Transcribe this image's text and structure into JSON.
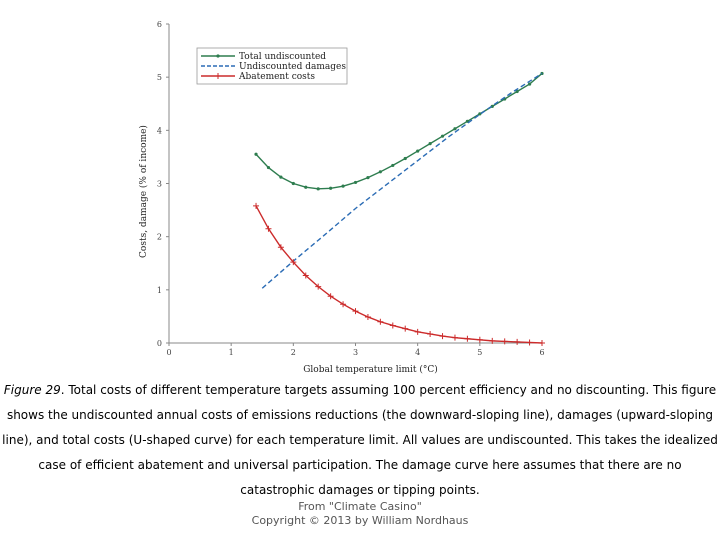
{
  "chart_data": {
    "type": "line",
    "xlabel": "Global temperature limit (°C)",
    "ylabel": "Costs, damage (% of income)",
    "xlim": [
      0,
      6
    ],
    "ylim": [
      0,
      6
    ],
    "xticks": [
      "0",
      "1",
      "2",
      "3",
      "4",
      "5",
      "6"
    ],
    "yticks": [
      "0",
      "1",
      "2",
      "3",
      "4",
      "5",
      "6"
    ],
    "grid": false,
    "legend_position": "top-left",
    "series": [
      {
        "name": "Total undiscounted",
        "color": "#2e7d4f",
        "style": "solid-markers",
        "x": [
          1.4,
          1.6,
          1.8,
          2.0,
          2.2,
          2.4,
          2.6,
          2.8,
          3.0,
          3.2,
          3.4,
          3.6,
          3.8,
          4.0,
          4.2,
          4.4,
          4.6,
          4.8,
          5.0,
          5.2,
          5.4,
          5.6,
          5.8,
          6.0
        ],
        "y": [
          3.55,
          3.3,
          3.12,
          3.0,
          2.93,
          2.9,
          2.91,
          2.95,
          3.02,
          3.11,
          3.22,
          3.34,
          3.47,
          3.61,
          3.75,
          3.89,
          4.03,
          4.17,
          4.31,
          4.45,
          4.59,
          4.73,
          4.87,
          5.07
        ]
      },
      {
        "name": "Undiscounted damages",
        "color": "#2b6cb5",
        "style": "dashed",
        "x": [
          1.5,
          2.0,
          2.5,
          3.0,
          3.5,
          4.0,
          4.5,
          5.0,
          5.5,
          6.0
        ],
        "y": [
          1.03,
          1.54,
          2.03,
          2.53,
          2.98,
          3.43,
          3.88,
          4.3,
          4.7,
          5.07
        ]
      },
      {
        "name": "Abatement costs",
        "color": "#cc2b2b",
        "style": "solid-plus",
        "x": [
          1.4,
          1.6,
          1.8,
          2.0,
          2.2,
          2.4,
          2.6,
          2.8,
          3.0,
          3.2,
          3.4,
          3.6,
          3.8,
          4.0,
          4.2,
          4.4,
          4.6,
          4.8,
          5.0,
          5.2,
          5.4,
          5.6,
          5.8,
          6.0
        ],
        "y": [
          2.58,
          2.15,
          1.8,
          1.52,
          1.27,
          1.06,
          0.88,
          0.73,
          0.6,
          0.49,
          0.4,
          0.33,
          0.27,
          0.21,
          0.17,
          0.13,
          0.1,
          0.08,
          0.06,
          0.04,
          0.03,
          0.02,
          0.01,
          0.0
        ]
      }
    ]
  },
  "caption": {
    "figure_label": "Figure 29",
    "text": ". Total costs of different temperature targets assuming 100 percent efficiency and no discounting. This figure shows the undiscounted annual costs of emissions reductions (the downward-sloping line), damages (upward-sloping line), and total costs (U-shaped curve) for each temperature limit. All values are undiscounted. This takes the idealized case of efficient abatement and universal participation. The damage curve here assumes that there are no catastrophic damages or tipping points."
  },
  "credit": {
    "line1": "From \"Climate Casino\"",
    "line2": "Copyright © 2013 by William Nordhaus"
  }
}
